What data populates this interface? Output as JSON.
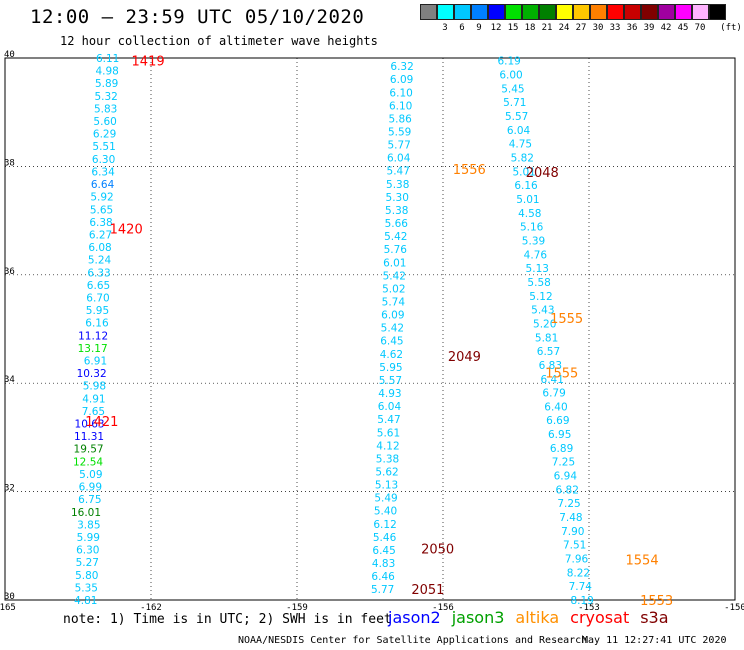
{
  "header": {
    "title": "12:00 – 23:59 UTC 05/10/2020",
    "subtitle": "12 hour collection of altimeter wave heights"
  },
  "legend": {
    "unit": "(ft)",
    "bins": [
      {
        "color": "#808080",
        "label": ""
      },
      {
        "color": "#00ffff",
        "label": "3"
      },
      {
        "color": "#00c8ff",
        "label": "6"
      },
      {
        "color": "#0080ff",
        "label": "9"
      },
      {
        "color": "#0000ff",
        "label": "12"
      },
      {
        "color": "#00e000",
        "label": "15"
      },
      {
        "color": "#00b000",
        "label": "18"
      },
      {
        "color": "#008000",
        "label": "21"
      },
      {
        "color": "#ffff00",
        "label": "24"
      },
      {
        "color": "#ffc800",
        "label": "27"
      },
      {
        "color": "#ff8000",
        "label": "30"
      },
      {
        "color": "#ff0000",
        "label": "33"
      },
      {
        "color": "#c80000",
        "label": "36"
      },
      {
        "color": "#800000",
        "label": "39"
      },
      {
        "color": "#a000a0",
        "label": "42"
      },
      {
        "color": "#ff00ff",
        "label": "45"
      },
      {
        "color": "#ffb4ff",
        "label": "70"
      },
      {
        "color": "#000000",
        "label": ""
      }
    ]
  },
  "map": {
    "x_ticks": [
      "-165",
      "-162",
      "-159",
      "-156",
      "-153",
      "-150"
    ],
    "y_ticks": [
      "40",
      "38",
      "36",
      "34",
      "32",
      "30"
    ],
    "lon_range": [
      -165,
      -150
    ],
    "lat_range": [
      30,
      40
    ],
    "grid": "dotted",
    "tracks": [
      {
        "color": "#00c8ff",
        "lon": -162.9,
        "values": [
          "6.11",
          "4.98",
          "5.89",
          "5.32",
          "5.83",
          "5.60",
          "6.29",
          "5.51",
          "6.30",
          "6.34",
          "6.64",
          "5.92",
          "5.65",
          "6.38",
          "6.27",
          "6.08",
          "5.24",
          "6.33",
          "6.65",
          "6.70",
          "5.95",
          "6.16",
          "11.12",
          "13.17",
          "6.91",
          "10.32",
          "5.98",
          "4.91",
          "7.65",
          "10.63",
          "11.31",
          "19.57",
          "12.54",
          "5.09",
          "6.99",
          "6.75",
          "16.01",
          "3.85",
          "5.99",
          "6.30",
          "5.27",
          "5.80",
          "5.35",
          "4.81"
        ],
        "lat_top": 40.0,
        "lat_bottom": 30.0,
        "lon_top": -162.65,
        "lon_bottom": -163.1,
        "colors": {
          "10": "#0080ff",
          "22": "#0000ff",
          "23": "#00e000",
          "25": "#0000ff",
          "29": "#0000ff",
          "30": "#0000ff",
          "31": "#008000",
          "32": "#00e000",
          "36": "#008000"
        }
      },
      {
        "color": "#00c8ff",
        "values": [
          "6.32",
          "6.09",
          "6.10",
          "6.10",
          "5.86",
          "5.59",
          "5.77",
          "6.04",
          "5.47",
          "5.38",
          "5.30",
          "5.38",
          "5.66",
          "5.42",
          "5.76",
          "6.01",
          "5.42",
          "5.02",
          "5.74",
          "6.09",
          "5.42",
          "6.45",
          "4.62",
          "5.95",
          "5.57",
          "4.93",
          "6.04",
          "5.47",
          "5.61",
          "4.12",
          "5.38",
          "5.62",
          "5.13",
          "5.49",
          "5.40",
          "6.12",
          "5.46",
          "6.45",
          "4.83",
          "6.46",
          "5.77"
        ],
        "lat_top": 39.85,
        "lat_bottom": 30.2,
        "lon_top": -156.6,
        "lon_bottom": -157.0
      },
      {
        "color": "#00c8ff",
        "values": [
          "6.19",
          "6.00",
          "5.45",
          "5.71",
          "5.57",
          "6.04",
          "4.75",
          "5.82",
          "5.01",
          "6.16",
          "5.01",
          "4.58",
          "5.16",
          "5.39",
          "4.76",
          "5.13",
          "5.58",
          "5.12",
          "5.43",
          "5.20",
          "5.81",
          "6.57",
          "6.83",
          "6.41",
          "6.79",
          "6.40",
          "6.69",
          "6.95",
          "6.89",
          "7.25",
          "6.94",
          "6.82",
          "7.25",
          "7.48",
          "7.90",
          "7.51",
          "7.96",
          "8.22",
          "7.74",
          "8.19"
        ],
        "lat_top": 39.95,
        "lat_bottom": 30.0,
        "lon_top": -154.4,
        "lon_bottom": -152.9
      }
    ],
    "time_labels": [
      {
        "text": "1419",
        "color": "#ff0000",
        "lon": -162.4,
        "lat": 39.95
      },
      {
        "text": "1420",
        "color": "#ff0000",
        "lon": -162.85,
        "lat": 36.85
      },
      {
        "text": "1421",
        "color": "#ff0000",
        "lon": -163.35,
        "lat": 33.3
      },
      {
        "text": "1556",
        "color": "#ff8000",
        "lon": -155.8,
        "lat": 37.95
      },
      {
        "text": "2048",
        "color": "#800000",
        "lon": -154.3,
        "lat": 37.9
      },
      {
        "text": "1555",
        "color": "#ff8000",
        "lon": -153.8,
        "lat": 35.2
      },
      {
        "text": "2049",
        "color": "#800000",
        "lon": -155.9,
        "lat": 34.5
      },
      {
        "text": "1555",
        "color": "#ff8000",
        "lon": -153.9,
        "lat": 34.2
      },
      {
        "text": "2050",
        "color": "#800000",
        "lon": -156.45,
        "lat": 30.95
      },
      {
        "text": "1554",
        "color": "#ff8000",
        "lon": -152.25,
        "lat": 30.75
      },
      {
        "text": "2051",
        "color": "#800000",
        "lon": -156.65,
        "lat": 30.2
      },
      {
        "text": "1553",
        "color": "#ff8000",
        "lon": -151.95,
        "lat": 30.0
      }
    ]
  },
  "footer": {
    "note": "note:  1) Time is in UTC;  2) SWH is in feet",
    "satellites": [
      {
        "name": "jason2",
        "color": "#0000ff"
      },
      {
        "name": "jason3",
        "color": "#00a000"
      },
      {
        "name": "altika",
        "color": "#ff9000"
      },
      {
        "name": "cryosat",
        "color": "#ff0000"
      },
      {
        "name": "s3a",
        "color": "#800000"
      }
    ],
    "credit": "NOAA/NESDIS Center for Satellite Applications and Research",
    "timestamp": "May 11 12:27:41 UTC 2020"
  }
}
